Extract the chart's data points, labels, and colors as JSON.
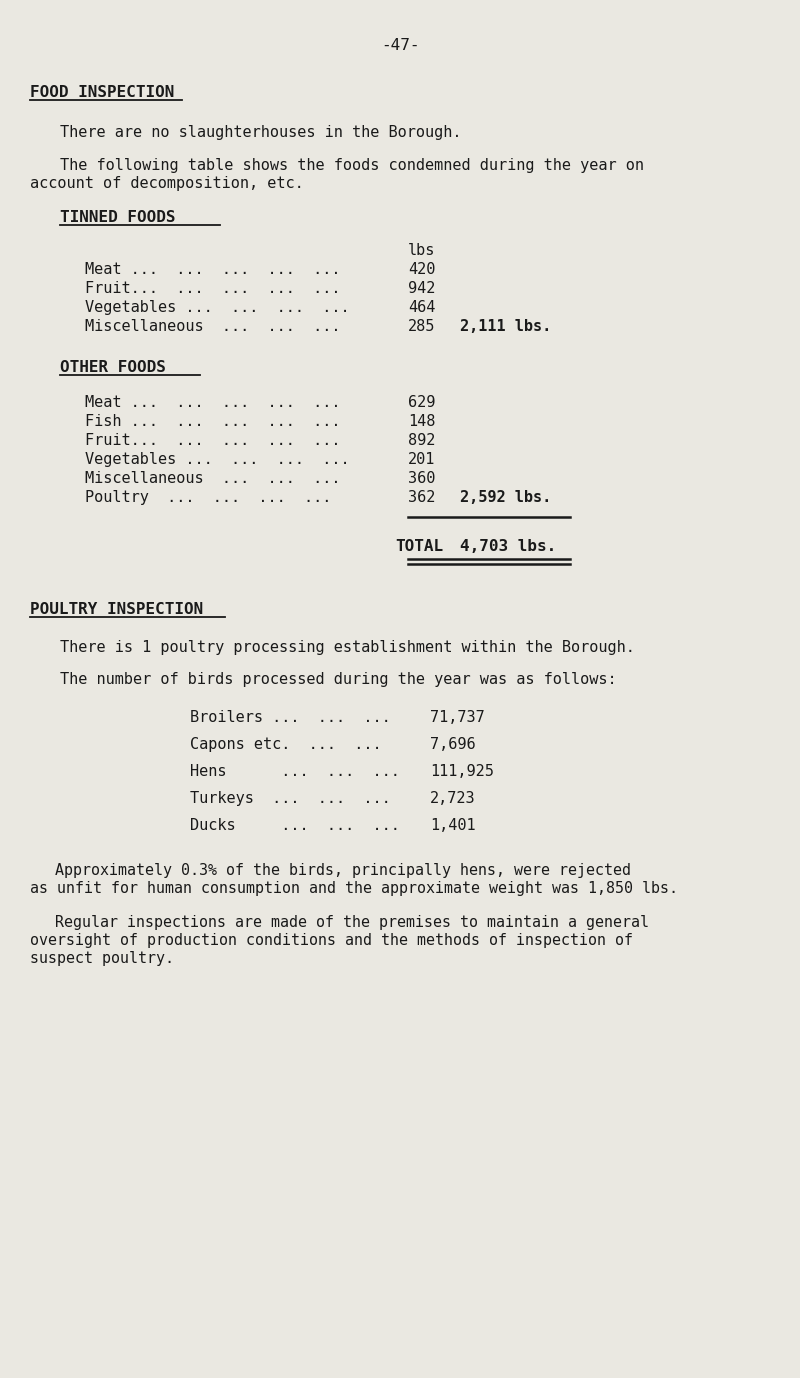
{
  "page_number": "-47-",
  "bg_color": "#eae8e1",
  "text_color": "#1a1a1a",
  "food_inspection_heading": "FOOD INSPECTION",
  "para1": "There are no slaughterhouses in the Borough.",
  "para2a": "The following table shows the foods condemned during the year on",
  "para2b": "account of decomposition, etc.",
  "tinned_foods_heading": "TINNED FOODS",
  "tinned_col_header": "lbs",
  "tinned_items": [
    {
      "label": "Meat ...  ...  ...  ...  ...",
      "value": "420"
    },
    {
      "label": "Fruit...  ...  ...  ...  ...",
      "value": "942"
    },
    {
      "label": "Vegetables ...  ...  ...  ...",
      "value": "464"
    },
    {
      "label": "Miscellaneous  ...  ...  ...",
      "value": "285"
    }
  ],
  "tinned_total": "2,111 lbs.",
  "other_foods_heading": "OTHER FOODS",
  "other_items": [
    {
      "label": "Meat ...  ...  ...  ...  ...",
      "value": "629"
    },
    {
      "label": "Fish ...  ...  ...  ...  ...",
      "value": "148"
    },
    {
      "label": "Fruit...  ...  ...  ...  ...",
      "value": "892"
    },
    {
      "label": "Vegetables ...  ...  ...  ...",
      "value": "201"
    },
    {
      "label": "Miscellaneous  ...  ...  ...",
      "value": "360"
    },
    {
      "label": "Poultry  ...  ...  ...  ...",
      "value": "362"
    }
  ],
  "other_total": "2,592 lbs.",
  "grand_total_label": "TOTAL",
  "grand_total": "4,703 lbs.",
  "poultry_inspection_heading": "POULTRY INSPECTION",
  "para3": "There is 1 poultry processing establishment within the Borough.",
  "para4": "The number of birds processed during the year was as follows:",
  "poultry_items": [
    {
      "label": "Broilers ...  ...  ...",
      "value": "71,737"
    },
    {
      "label": "Capons etc.  ...  ...",
      "value": "7,696"
    },
    {
      "label": "Hens      ...  ...  ...",
      "value": "111,925"
    },
    {
      "label": "Turkeys  ...  ...  ...",
      "value": "2,723"
    },
    {
      "label": "Ducks     ...  ...  ...",
      "value": "1,401"
    }
  ],
  "para5a": "Approximately 0.3% of the birds, principally hens, were rejected",
  "para5b": "as unfit for human consumption and the approximate weight was 1,850 lbs.",
  "para6a": "Regular inspections are made of the premises to maintain a general",
  "para6b": "oversight of production conditions and the methods of inspection of",
  "para6c": "suspect poultry."
}
